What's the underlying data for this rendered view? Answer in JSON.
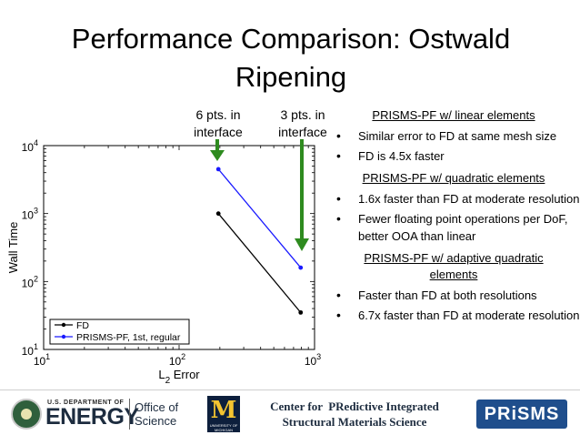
{
  "slide": {
    "title_line1": "Performance Comparison: Ostwald",
    "title_line2": "Ripening"
  },
  "annotations": {
    "six_pts_line1": "6 pts. in",
    "six_pts_line2": "interface",
    "three_pts_line1": "3 pts. in",
    "three_pts_line2": "interface",
    "arrow_color": "#2e8b1f"
  },
  "chart_data": {
    "type": "line",
    "xscale": "log",
    "yscale": "log",
    "xlim": [
      10,
      1000
    ],
    "ylim": [
      10,
      10000
    ],
    "xlabel": "L",
    "xlabel_sub": "2",
    "xlabel_rest": " Error",
    "ylabel": "Wall Time",
    "x_ticks": [
      {
        "base": "10",
        "exp": "1"
      },
      {
        "base": "10",
        "exp": "2"
      },
      {
        "base": "10",
        "exp": "3"
      }
    ],
    "y_ticks": [
      {
        "base": "10",
        "exp": "1"
      },
      {
        "base": "10",
        "exp": "2"
      },
      {
        "base": "10",
        "exp": "3"
      },
      {
        "base": "10",
        "exp": "4"
      }
    ],
    "grid": false,
    "legend_position": "bottom-left",
    "series": [
      {
        "name": "FD",
        "color": "#000000",
        "x": [
          195,
          790
        ],
        "y": [
          1000,
          35
        ]
      },
      {
        "name": "PRISMS-PF, 1st, regular",
        "color": "#1a1aff",
        "x": [
          195,
          790
        ],
        "y": [
          4500,
          160
        ]
      }
    ]
  },
  "notes": {
    "linear_title": "PRISMS-PF w/ linear elements",
    "linear_items": [
      "Similar error to FD at same mesh size",
      "FD is 4.5x faster"
    ],
    "quadratic_title": "PRISMS-PF w/ quadratic elements",
    "quadratic_items": [
      "1.6x faster than FD at moderate resolution",
      "Fewer floating point operations per DoF, better OOA than linear"
    ],
    "adaptive_title": "PRISMS-PF w/ adaptive quadratic elements",
    "adaptive_items": [
      "Faster than FD at both resolutions",
      "6.7x faster than FD at moderate resolution"
    ]
  },
  "footer": {
    "doe_small": "U.S. DEPARTMENT OF",
    "doe_big": "ENERGY",
    "doe_office": "Office of Science",
    "um_letter": "M",
    "um_text": "UNIVERSITY OF MICHIGAN",
    "center_line1": "Center for  PRedictive Integrated",
    "center_line2": "Structural Materials Science",
    "prisms_logo": "PRiSMS"
  }
}
